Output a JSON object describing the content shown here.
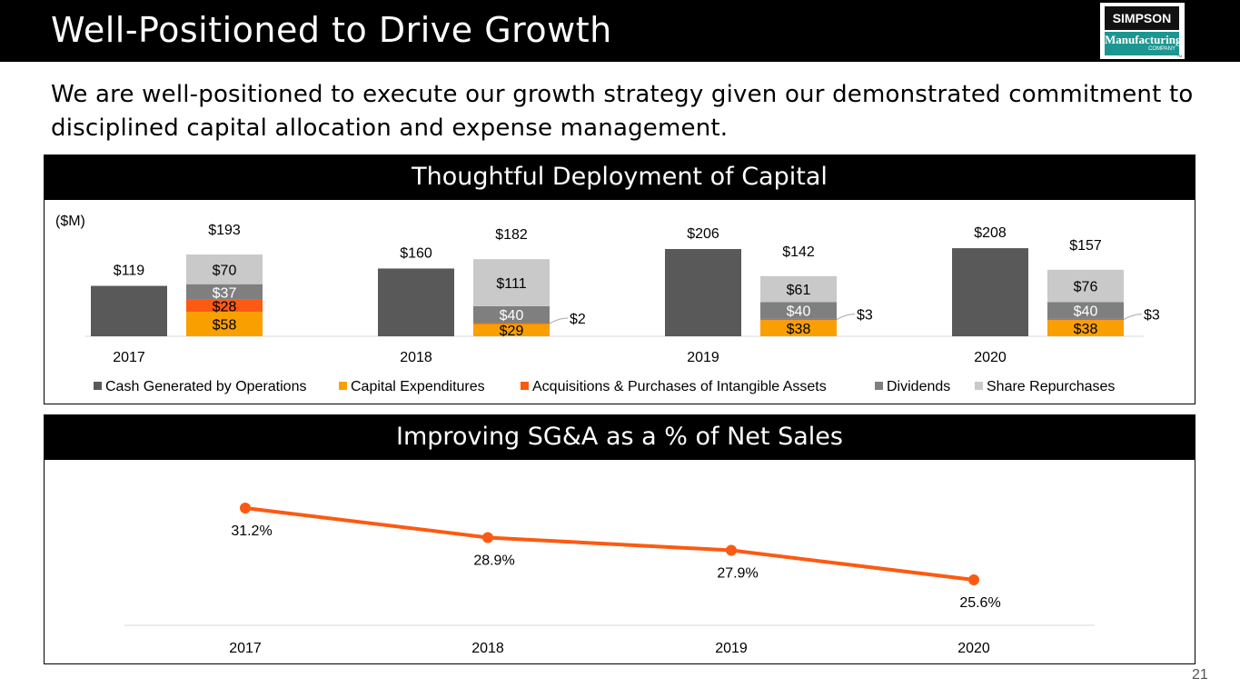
{
  "header": {
    "title": "Well-Positioned to Drive Growth",
    "logo": {
      "line1": "SIMPSON",
      "line2": "Manufacturing",
      "line3": "COMPANY",
      "trademark": "TM"
    }
  },
  "subtitle": "We are well-positioned to execute our growth strategy given our demonstrated commitment to disciplined capital allocation and expense management.",
  "page_number": "21",
  "colors": {
    "cash": "#595959",
    "capex": "#f9a000",
    "acquisitions": "#fc5a12",
    "dividends": "#7f7f7f",
    "repurchases": "#c9c9c9",
    "line": "#fc5a12"
  },
  "chart_data": [
    {
      "type": "bar",
      "title": "Thoughtful Deployment of Capital",
      "unit_label": "($M)",
      "categories": [
        "2017",
        "2018",
        "2019",
        "2020"
      ],
      "series": [
        {
          "name": "Cash Generated by Operations",
          "stack": "cash",
          "values": [
            119,
            160,
            206,
            208
          ],
          "labels": [
            "$119",
            "$160",
            "$206",
            "$208"
          ]
        },
        {
          "name": "Capital Expenditures",
          "stack": "uses",
          "values": [
            58,
            29,
            38,
            38
          ],
          "labels": [
            "$58",
            "$29",
            "$38",
            "$38"
          ]
        },
        {
          "name": "Acquisitions & Purchases of Intangible Assets",
          "stack": "uses",
          "values": [
            28,
            2,
            3,
            3
          ],
          "labels": [
            "$28",
            "$2",
            "$3",
            "$3"
          ]
        },
        {
          "name": "Dividends",
          "stack": "uses",
          "values": [
            37,
            40,
            40,
            40
          ],
          "labels": [
            "$37",
            "$40",
            "$40",
            "$40"
          ]
        },
        {
          "name": "Share Repurchases",
          "stack": "uses",
          "values": [
            70,
            111,
            61,
            76
          ],
          "labels": [
            "$70",
            "$111",
            "$61",
            "$76"
          ]
        }
      ],
      "stack_totals": {
        "values": [
          193,
          182,
          142,
          157
        ],
        "labels": [
          "$193",
          "$182",
          "$142",
          "$157"
        ]
      },
      "legend": [
        "Cash Generated by Operations",
        "Capital Expenditures",
        "Acquisitions & Purchases of Intangible Assets",
        "Dividends",
        "Share Repurchases"
      ],
      "legend_position": "bottom",
      "ylim": [
        0,
        220
      ],
      "grid": false
    },
    {
      "type": "line",
      "title": "Improving SG&A as a % of Net Sales",
      "categories": [
        "2017",
        "2018",
        "2019",
        "2020"
      ],
      "series": [
        {
          "name": "SG&A as % of Net Sales",
          "values": [
            31.2,
            28.9,
            27.9,
            25.6
          ],
          "labels": [
            "31.2%",
            "28.9%",
            "27.9%",
            "25.6%"
          ]
        }
      ],
      "ylim": [
        20,
        33
      ],
      "grid": false,
      "legend": []
    }
  ]
}
